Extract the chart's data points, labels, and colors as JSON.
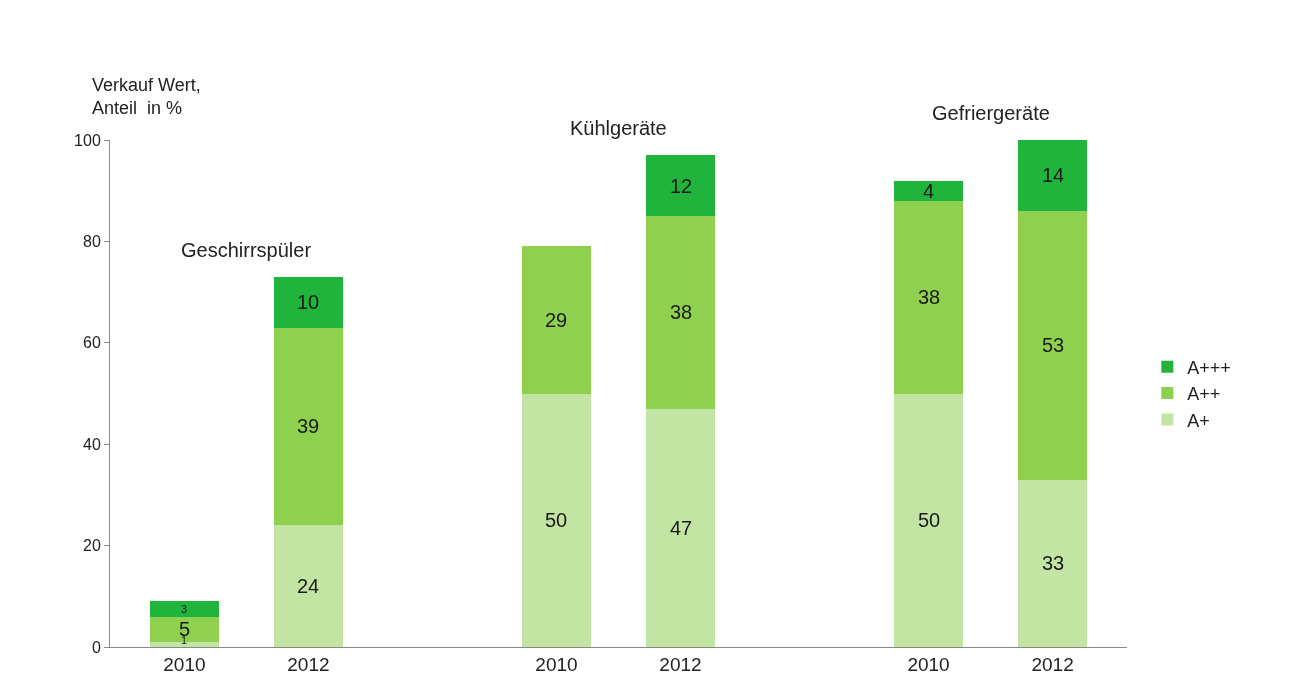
{
  "chart_data": {
    "type": "bar",
    "stacked": true,
    "ylabel": "Verkauf Wert,\nAnteil  in %",
    "categories": [
      "2010",
      "2012",
      null,
      "2010",
      "2012",
      null,
      "2010",
      "2012"
    ],
    "series": [
      {
        "name": "A+",
        "color": "#c3e5a3",
        "values": [
          1,
          24,
          null,
          50,
          47,
          null,
          50,
          33
        ]
      },
      {
        "name": "A++",
        "color": "#8fd14f",
        "values": [
          5,
          39,
          null,
          29,
          38,
          null,
          38,
          53
        ]
      },
      {
        "name": "A+++",
        "color": "#20b43c",
        "values": [
          3,
          10,
          null,
          null,
          12,
          null,
          4,
          14
        ]
      }
    ],
    "annotations": [
      "Geschirrspüler",
      "Kühlgeräte",
      "Gefriergeräte"
    ],
    "ylim": [
      0,
      100
    ],
    "yticks": [
      0,
      20,
      40,
      60,
      80,
      100
    ],
    "legend": "right",
    "data_labels": true
  }
}
